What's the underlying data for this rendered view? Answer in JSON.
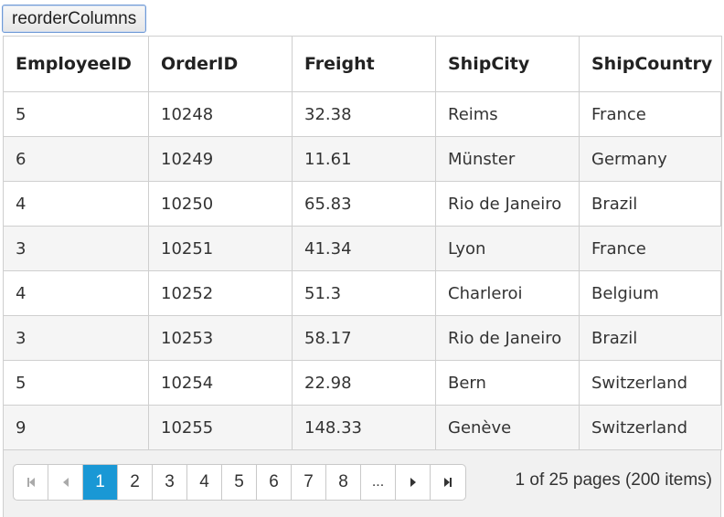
{
  "toolbar": {
    "reorder_label": "reorderColumns"
  },
  "grid": {
    "columns": [
      "EmployeeID",
      "OrderID",
      "Freight",
      "ShipCity",
      "ShipCountry"
    ],
    "rows": [
      [
        "5",
        "10248",
        "32.38",
        "Reims",
        "France"
      ],
      [
        "6",
        "10249",
        "11.61",
        "Münster",
        "Germany"
      ],
      [
        "4",
        "10250",
        "65.83",
        "Rio de Janeiro",
        "Brazil"
      ],
      [
        "3",
        "10251",
        "41.34",
        "Lyon",
        "France"
      ],
      [
        "4",
        "10252",
        "51.3",
        "Charleroi",
        "Belgium"
      ],
      [
        "3",
        "10253",
        "58.17",
        "Rio de Janeiro",
        "Brazil"
      ],
      [
        "5",
        "10254",
        "22.98",
        "Bern",
        "Switzerland"
      ],
      [
        "9",
        "10255",
        "148.33",
        "Genève",
        "Switzerland"
      ]
    ]
  },
  "pager": {
    "pages": [
      "1",
      "2",
      "3",
      "4",
      "5",
      "6",
      "7",
      "8"
    ],
    "ellipsis": "...",
    "current_page": "1",
    "info": "1 of 25 pages (200 items)",
    "accent_color": "#1a98d5",
    "icons": [
      "first-page-icon",
      "prev-page-icon",
      "next-page-icon",
      "last-page-icon"
    ]
  }
}
